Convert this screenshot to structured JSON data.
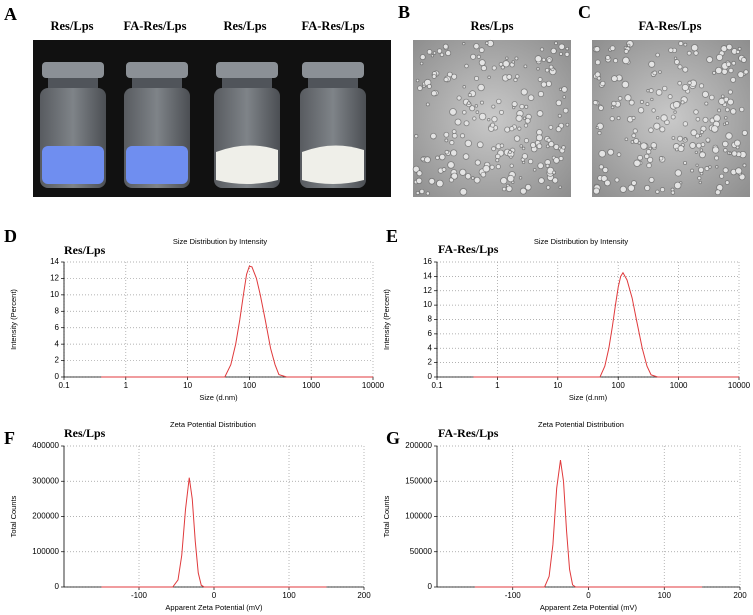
{
  "figure": {
    "panel_letters": [
      "A",
      "B",
      "C",
      "D",
      "E",
      "F",
      "G"
    ],
    "photo_a_labels": [
      "Res/Lps",
      "FA-Res/Lps",
      "Res/Lps",
      "FA-Res/Lps"
    ],
    "photo_b_label": "Res/Lps",
    "photo_c_label": "FA-Res/Lps"
  },
  "chart_data": [
    {
      "type": "line",
      "title": "Size Distribution by Intensity",
      "annotation": "Res/Lps",
      "x_label": "Size (d.nm)",
      "y_label": "Intensity (Percent)",
      "xscale": "log",
      "grid": true,
      "color": "#e03a3c",
      "x": [
        0.4,
        40,
        50,
        60,
        70,
        80,
        90,
        100,
        110,
        130,
        150,
        180,
        220,
        260,
        300,
        400,
        10000
      ],
      "values": [
        0,
        0,
        1.5,
        4,
        7,
        10,
        12.5,
        13.5,
        13.4,
        12,
        10,
        7,
        3.5,
        1.5,
        0.3,
        0,
        0
      ],
      "xlim": [
        0.1,
        10000
      ],
      "xticks": [
        0.1,
        1,
        10,
        100,
        1000,
        10000
      ],
      "ylim": [
        0,
        14
      ],
      "yticks": [
        0,
        2,
        4,
        6,
        8,
        10,
        12,
        14
      ]
    },
    {
      "type": "line",
      "title": "Size Distribution by Intensity",
      "annotation": "FA-Res/Lps",
      "x_label": "Size (d.nm)",
      "y_label": "Intensity (Percent)",
      "xscale": "log",
      "grid": true,
      "color": "#e03a3c",
      "x": [
        0.4,
        50,
        60,
        70,
        80,
        90,
        100,
        110,
        120,
        140,
        170,
        200,
        250,
        300,
        350,
        450,
        10000
      ],
      "values": [
        0,
        0,
        1.5,
        4,
        7,
        10,
        12.5,
        14,
        14.5,
        13.5,
        11,
        8,
        4,
        1.5,
        0.3,
        0,
        0
      ],
      "xlim": [
        0.1,
        10000
      ],
      "xticks": [
        0.1,
        1,
        10,
        100,
        1000,
        10000
      ],
      "ylim": [
        0,
        16
      ],
      "yticks": [
        0,
        2,
        4,
        6,
        8,
        10,
        12,
        14,
        16
      ]
    },
    {
      "type": "line",
      "title": "Zeta Potential Distribution",
      "annotation": "Res/Lps",
      "x_label": "Apparent Zeta Potential (mV)",
      "y_label": "Total Counts",
      "grid": true,
      "color": "#e03a3c",
      "x": [
        -150,
        -55,
        -48,
        -43,
        -38,
        -33,
        -29,
        -25,
        -21,
        -17,
        -13,
        150
      ],
      "values": [
        0,
        0,
        20000,
        90000,
        220000,
        310000,
        250000,
        130000,
        40000,
        5000,
        0,
        0
      ],
      "xlim": [
        -200,
        200
      ],
      "xticks": [
        -100,
        0,
        100,
        200
      ],
      "ylim": [
        0,
        400000
      ],
      "yticks": [
        0,
        100000,
        200000,
        300000,
        400000
      ]
    },
    {
      "type": "line",
      "title": "Zeta Potential Distribution",
      "annotation": "FA-Res/Lps",
      "x_label": "Apparent Zeta Potential (mV)",
      "y_label": "Total Counts",
      "grid": true,
      "color": "#e03a3c",
      "x": [
        -150,
        -58,
        -52,
        -47,
        -42,
        -37,
        -33,
        -29,
        -25,
        -21,
        -17,
        150
      ],
      "values": [
        0,
        0,
        15000,
        60000,
        140000,
        180000,
        150000,
        80000,
        25000,
        3000,
        0,
        0
      ],
      "xlim": [
        -200,
        200
      ],
      "xticks": [
        -100,
        0,
        100,
        200
      ],
      "ylim": [
        0,
        200000
      ],
      "yticks": [
        0,
        50000,
        100000,
        150000,
        200000
      ]
    }
  ]
}
